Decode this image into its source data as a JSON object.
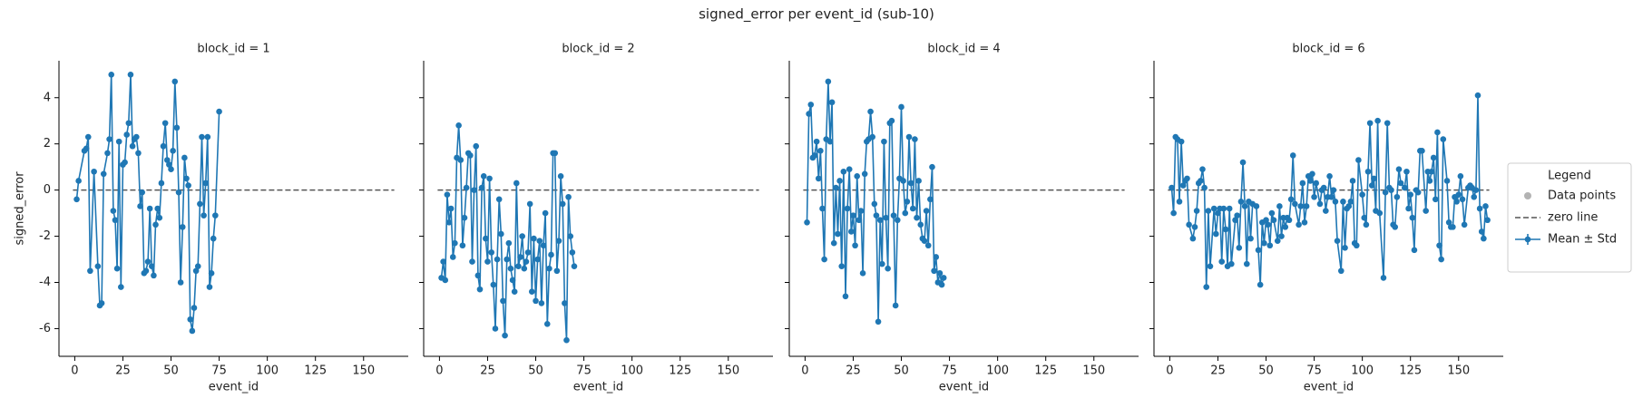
{
  "title": "signed_error per event_id (sub-10)",
  "legend": {
    "title": "Legend",
    "entries": [
      {
        "label": "Data points",
        "color": "#b3b3b3",
        "kind": "dot"
      },
      {
        "label": "zero line",
        "color": "#555555",
        "kind": "dash"
      },
      {
        "label": "Mean ± Std",
        "color": "#1f77b4",
        "kind": "line"
      }
    ]
  },
  "chart_data": [
    {
      "type": "line",
      "title": "block_id = 1",
      "xlabel": "event_id",
      "ylabel": "signed_error",
      "hline": 0,
      "xlim": [
        -8.2,
        173.2
      ],
      "ylim": [
        -7.2,
        5.6
      ],
      "xticks": [
        0,
        25,
        50,
        75,
        100,
        125,
        150
      ],
      "yticks": [
        -6,
        -4,
        -2,
        0,
        2,
        4
      ],
      "x": [
        1,
        2,
        5,
        6,
        7,
        8,
        10,
        12,
        13,
        14,
        15,
        17,
        18,
        19,
        20,
        21,
        22,
        23,
        24,
        25,
        26,
        27,
        28,
        29,
        30,
        31,
        32,
        33,
        34,
        35,
        36,
        37,
        38,
        39,
        40,
        41,
        42,
        43,
        44,
        45,
        46,
        47,
        48,
        49,
        50,
        51,
        52,
        53,
        54,
        55,
        56,
        57,
        58,
        59,
        60,
        61,
        62,
        63,
        64,
        65,
        66,
        67,
        68,
        69,
        70,
        71,
        72,
        73,
        75
      ],
      "series": [
        {
          "color": "#1f77b4",
          "values": [
            -0.4,
            0.4,
            1.7,
            1.8,
            2.3,
            -3.5,
            0.8,
            -3.3,
            -5.0,
            -4.9,
            0.7,
            1.6,
            2.2,
            5.0,
            -0.9,
            -1.3,
            -3.4,
            2.1,
            -4.2,
            1.1,
            1.2,
            2.4,
            2.9,
            5.0,
            1.9,
            2.2,
            2.3,
            1.6,
            -0.7,
            -0.1,
            -3.6,
            -3.5,
            -3.1,
            -0.8,
            -3.3,
            -3.7,
            -1.5,
            -0.8,
            -1.2,
            0.3,
            1.9,
            2.9,
            1.3,
            1.1,
            0.9,
            1.7,
            4.7,
            2.7,
            -0.1,
            -4.0,
            -1.6,
            1.4,
            0.5,
            0.2,
            -5.6,
            -6.1,
            -5.1,
            -3.5,
            -3.3,
            -0.6,
            2.3,
            -1.1,
            0.3,
            2.3,
            -4.2,
            -3.6,
            -2.1,
            -1.1,
            3.4
          ]
        }
      ]
    },
    {
      "type": "line",
      "title": "block_id = 2",
      "xlabel": "event_id",
      "hline": 0,
      "xlim": [
        -8.2,
        173.2
      ],
      "ylim": [
        -7.2,
        5.6
      ],
      "xticks": [
        0,
        25,
        50,
        75,
        100,
        125,
        150
      ],
      "x": [
        1,
        2,
        3,
        4,
        5,
        6,
        7,
        8,
        9,
        10,
        11,
        12,
        13,
        14,
        15,
        16,
        17,
        18,
        19,
        20,
        21,
        22,
        23,
        24,
        25,
        26,
        27,
        28,
        29,
        30,
        31,
        32,
        33,
        34,
        35,
        36,
        37,
        38,
        39,
        40,
        41,
        42,
        43,
        44,
        45,
        46,
        47,
        48,
        49,
        50,
        51,
        52,
        53,
        54,
        55,
        56,
        57,
        58,
        59,
        60,
        61,
        62,
        63,
        64,
        65,
        66,
        67,
        68,
        69,
        70
      ],
      "series": [
        {
          "color": "#1f77b4",
          "values": [
            -3.8,
            -3.1,
            -3.9,
            -0.2,
            -1.4,
            -0.8,
            -2.9,
            -2.3,
            1.4,
            2.8,
            1.3,
            -2.4,
            -1.2,
            0.1,
            1.6,
            1.5,
            -3.1,
            0.0,
            1.9,
            -3.7,
            -4.3,
            0.1,
            0.6,
            -2.1,
            -3.1,
            0.5,
            -2.7,
            -4.1,
            -6.0,
            -3.0,
            -0.4,
            -1.9,
            -4.8,
            -6.3,
            -3.0,
            -2.3,
            -3.4,
            -3.9,
            -4.4,
            0.3,
            -3.3,
            -2.9,
            -2.0,
            -3.4,
            -3.1,
            -2.7,
            -0.6,
            -4.4,
            -2.1,
            -4.8,
            -3.0,
            -2.2,
            -4.9,
            -2.4,
            -1.0,
            -5.8,
            -3.4,
            -2.8,
            1.6,
            1.6,
            -3.5,
            -2.2,
            0.6,
            -0.6,
            -4.9,
            -6.5,
            -0.3,
            -2.0,
            -2.7,
            -3.3
          ]
        }
      ]
    },
    {
      "type": "line",
      "title": "block_id = 4",
      "xlabel": "event_id",
      "hline": 0,
      "xlim": [
        -8.2,
        173.2
      ],
      "ylim": [
        -7.2,
        5.6
      ],
      "xticks": [
        0,
        25,
        50,
        75,
        100,
        125,
        150
      ],
      "x": [
        1,
        2,
        3,
        4,
        5,
        6,
        7,
        8,
        9,
        10,
        11,
        12,
        13,
        14,
        15,
        16,
        17,
        18,
        19,
        20,
        21,
        22,
        23,
        24,
        25,
        26,
        27,
        28,
        29,
        30,
        31,
        32,
        33,
        34,
        35,
        36,
        37,
        38,
        39,
        40,
        41,
        42,
        43,
        44,
        45,
        46,
        47,
        48,
        49,
        50,
        51,
        52,
        53,
        54,
        55,
        56,
        57,
        58,
        59,
        60,
        61,
        62,
        63,
        64,
        65,
        66,
        67,
        68,
        69,
        70,
        71,
        72
      ],
      "series": [
        {
          "color": "#1f77b4",
          "values": [
            -1.4,
            3.3,
            3.7,
            1.4,
            1.5,
            2.1,
            0.5,
            1.7,
            -0.8,
            -3.0,
            2.2,
            4.7,
            2.1,
            3.8,
            -2.3,
            0.1,
            -1.9,
            0.4,
            -3.3,
            0.8,
            -4.6,
            -0.8,
            0.9,
            -1.8,
            -1.1,
            -2.4,
            0.6,
            -1.3,
            -0.9,
            -3.6,
            0.7,
            2.1,
            2.2,
            3.4,
            2.3,
            -0.6,
            -1.1,
            -5.7,
            -1.3,
            -3.2,
            2.1,
            -1.2,
            -3.4,
            2.9,
            3.0,
            -1.1,
            -5.0,
            -1.3,
            0.5,
            3.6,
            0.4,
            -1.0,
            -0.5,
            2.3,
            0.3,
            -0.8,
            2.2,
            -1.2,
            0.4,
            -1.5,
            -2.1,
            -2.2,
            -0.9,
            -2.4,
            -0.4,
            1.0,
            -3.5,
            -2.9,
            -4.0,
            -3.6,
            -4.1,
            -3.8
          ]
        }
      ]
    },
    {
      "type": "line",
      "title": "block_id = 6",
      "xlabel": "event_id",
      "hline": 0,
      "xlim": [
        -8.2,
        173.2
      ],
      "ylim": [
        -7.2,
        5.6
      ],
      "xticks": [
        0,
        25,
        50,
        75,
        100,
        125,
        150
      ],
      "x": [
        1,
        2,
        3,
        4,
        5,
        6,
        7,
        8,
        9,
        10,
        12,
        13,
        14,
        15,
        16,
        17,
        18,
        19,
        20,
        21,
        23,
        24,
        25,
        26,
        27,
        28,
        29,
        30,
        31,
        32,
        34,
        35,
        36,
        37,
        38,
        39,
        40,
        41,
        42,
        43,
        45,
        46,
        47,
        48,
        49,
        50,
        51,
        52,
        53,
        54,
        56,
        57,
        58,
        59,
        60,
        61,
        62,
        63,
        64,
        65,
        67,
        68,
        69,
        70,
        71,
        72,
        73,
        74,
        75,
        76,
        78,
        79,
        80,
        81,
        82,
        83,
        84,
        85,
        86,
        87,
        89,
        90,
        91,
        92,
        93,
        94,
        95,
        96,
        97,
        98,
        100,
        101,
        102,
        103,
        104,
        105,
        106,
        107,
        108,
        109,
        111,
        112,
        113,
        114,
        115,
        116,
        117,
        118,
        119,
        120,
        122,
        123,
        124,
        125,
        126,
        127,
        128,
        129,
        130,
        131,
        133,
        134,
        135,
        136,
        137,
        138,
        139,
        140,
        141,
        142,
        144,
        145,
        146,
        147,
        148,
        149,
        150,
        151,
        152,
        153,
        155,
        156,
        157,
        158,
        159,
        160,
        161,
        162,
        163,
        164,
        165
      ],
      "series": [
        {
          "color": "#1f77b4",
          "values": [
            0.1,
            -1.0,
            2.3,
            2.2,
            -0.5,
            2.1,
            0.2,
            0.4,
            0.5,
            -1.5,
            -2.1,
            -1.6,
            -0.9,
            0.3,
            0.4,
            0.9,
            0.1,
            -4.2,
            -0.9,
            -3.3,
            -0.8,
            -1.9,
            -1.0,
            -0.8,
            -3.1,
            -0.8,
            -1.7,
            -3.3,
            -0.8,
            -3.2,
            -1.3,
            -1.1,
            -2.5,
            -0.5,
            1.2,
            -0.7,
            -3.2,
            -0.5,
            -2.1,
            -0.6,
            -0.7,
            -2.6,
            -4.1,
            -1.4,
            -2.3,
            -1.3,
            -1.5,
            -2.4,
            -1.0,
            -1.3,
            -2.2,
            -0.7,
            -2.0,
            -1.2,
            -1.6,
            -1.2,
            -1.3,
            -0.4,
            1.5,
            -0.6,
            -1.5,
            -0.7,
            0.3,
            -1.4,
            -0.7,
            0.6,
            0.4,
            0.7,
            -0.3,
            0.3,
            -0.6,
            0.0,
            0.1,
            -0.9,
            -0.3,
            0.6,
            -0.3,
            0.0,
            -0.5,
            -2.2,
            -3.5,
            -0.5,
            -2.5,
            -0.8,
            -0.7,
            -0.5,
            0.4,
            -2.3,
            -2.4,
            1.3,
            -0.2,
            -1.2,
            -1.5,
            0.8,
            2.9,
            0.2,
            0.5,
            -0.9,
            3.0,
            -1.0,
            -3.8,
            -0.1,
            2.9,
            0.1,
            0.0,
            -1.5,
            -1.6,
            -0.3,
            0.9,
            0.3,
            0.1,
            0.8,
            -0.8,
            -0.2,
            -1.2,
            -2.6,
            0.0,
            -0.1,
            1.7,
            1.7,
            -0.9,
            0.8,
            0.4,
            0.8,
            1.4,
            -0.4,
            2.5,
            -2.4,
            -3.0,
            2.2,
            0.4,
            -1.4,
            -1.6,
            -1.6,
            -0.3,
            -0.5,
            -0.2,
            0.6,
            -0.4,
            -1.5,
            0.1,
            0.2,
            0.1,
            -0.3,
            0.0,
            4.1,
            -0.8,
            -1.8,
            -2.1,
            -0.7,
            -1.3
          ]
        }
      ]
    }
  ]
}
